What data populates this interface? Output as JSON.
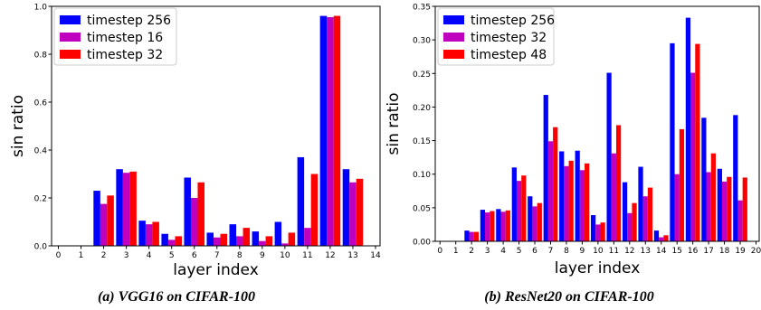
{
  "chart_data": [
    {
      "type": "bar",
      "caption": "(a) VGG16 on CIFAR-100",
      "xlabel": "layer index",
      "ylabel": "sin ratio",
      "xlim": [
        -0.3,
        14.2
      ],
      "ylim": [
        0,
        1.0
      ],
      "xticks": [
        0,
        1,
        2,
        3,
        4,
        5,
        6,
        7,
        8,
        9,
        10,
        11,
        12,
        13,
        14
      ],
      "yticks": [
        0.0,
        0.2,
        0.4,
        0.6,
        0.8,
        1.0
      ],
      "ytick_labels": [
        "0.0",
        "0.2",
        "0.4",
        "0.6",
        "0.8",
        "1.0"
      ],
      "legend_position": "top-left",
      "categories": [
        2,
        3,
        4,
        5,
        6,
        7,
        8,
        9,
        10,
        11,
        12,
        13
      ],
      "series": [
        {
          "name": "timestep 256",
          "color": "#0000ff",
          "values": [
            0.23,
            0.32,
            0.105,
            0.05,
            0.285,
            0.055,
            0.09,
            0.06,
            0.1,
            0.37,
            0.96,
            0.32
          ]
        },
        {
          "name": "timestep 16",
          "color": "#bf00bf",
          "values": [
            0.175,
            0.305,
            0.09,
            0.025,
            0.2,
            0.035,
            0.04,
            0.02,
            0.01,
            0.075,
            0.955,
            0.265
          ]
        },
        {
          "name": "timestep 32",
          "color": "#ff0000",
          "values": [
            0.21,
            0.31,
            0.1,
            0.04,
            0.265,
            0.05,
            0.075,
            0.04,
            0.055,
            0.3,
            0.96,
            0.28
          ]
        }
      ]
    },
    {
      "type": "bar",
      "caption": "(b) ResNet20 on CIFAR-100",
      "xlabel": "layer index",
      "ylabel": "sin ratio",
      "xlim": [
        -0.3,
        20.2
      ],
      "ylim": [
        0,
        0.35
      ],
      "xticks": [
        0,
        1,
        2,
        3,
        4,
        5,
        6,
        7,
        8,
        9,
        10,
        11,
        12,
        13,
        14,
        15,
        16,
        17,
        18,
        19,
        20
      ],
      "yticks": [
        0.0,
        0.05,
        0.1,
        0.15,
        0.2,
        0.25,
        0.3,
        0.35
      ],
      "ytick_labels": [
        "0.00",
        "0.05",
        "0.10",
        "0.15",
        "0.20",
        "0.25",
        "0.30",
        "0.35"
      ],
      "legend_position": "top-left",
      "categories": [
        2,
        3,
        4,
        5,
        6,
        7,
        8,
        9,
        10,
        11,
        12,
        13,
        14,
        15,
        16,
        17,
        18,
        19
      ],
      "series": [
        {
          "name": "timestep 256",
          "color": "#0000ff",
          "values": [
            0.016,
            0.047,
            0.048,
            0.11,
            0.067,
            0.218,
            0.134,
            0.135,
            0.039,
            0.251,
            0.088,
            0.111,
            0.016,
            0.295,
            0.333,
            0.184,
            0.108,
            0.188
          ]
        },
        {
          "name": "timestep 32",
          "color": "#bf00bf",
          "values": [
            0.014,
            0.043,
            0.044,
            0.09,
            0.052,
            0.149,
            0.112,
            0.106,
            0.025,
            0.131,
            0.042,
            0.067,
            0.006,
            0.1,
            0.251,
            0.103,
            0.089,
            0.061
          ]
        },
        {
          "name": "timestep 48",
          "color": "#ff0000",
          "values": [
            0.014,
            0.045,
            0.046,
            0.098,
            0.057,
            0.17,
            0.12,
            0.116,
            0.028,
            0.173,
            0.057,
            0.08,
            0.009,
            0.167,
            0.294,
            0.131,
            0.096,
            0.095
          ]
        }
      ]
    }
  ]
}
